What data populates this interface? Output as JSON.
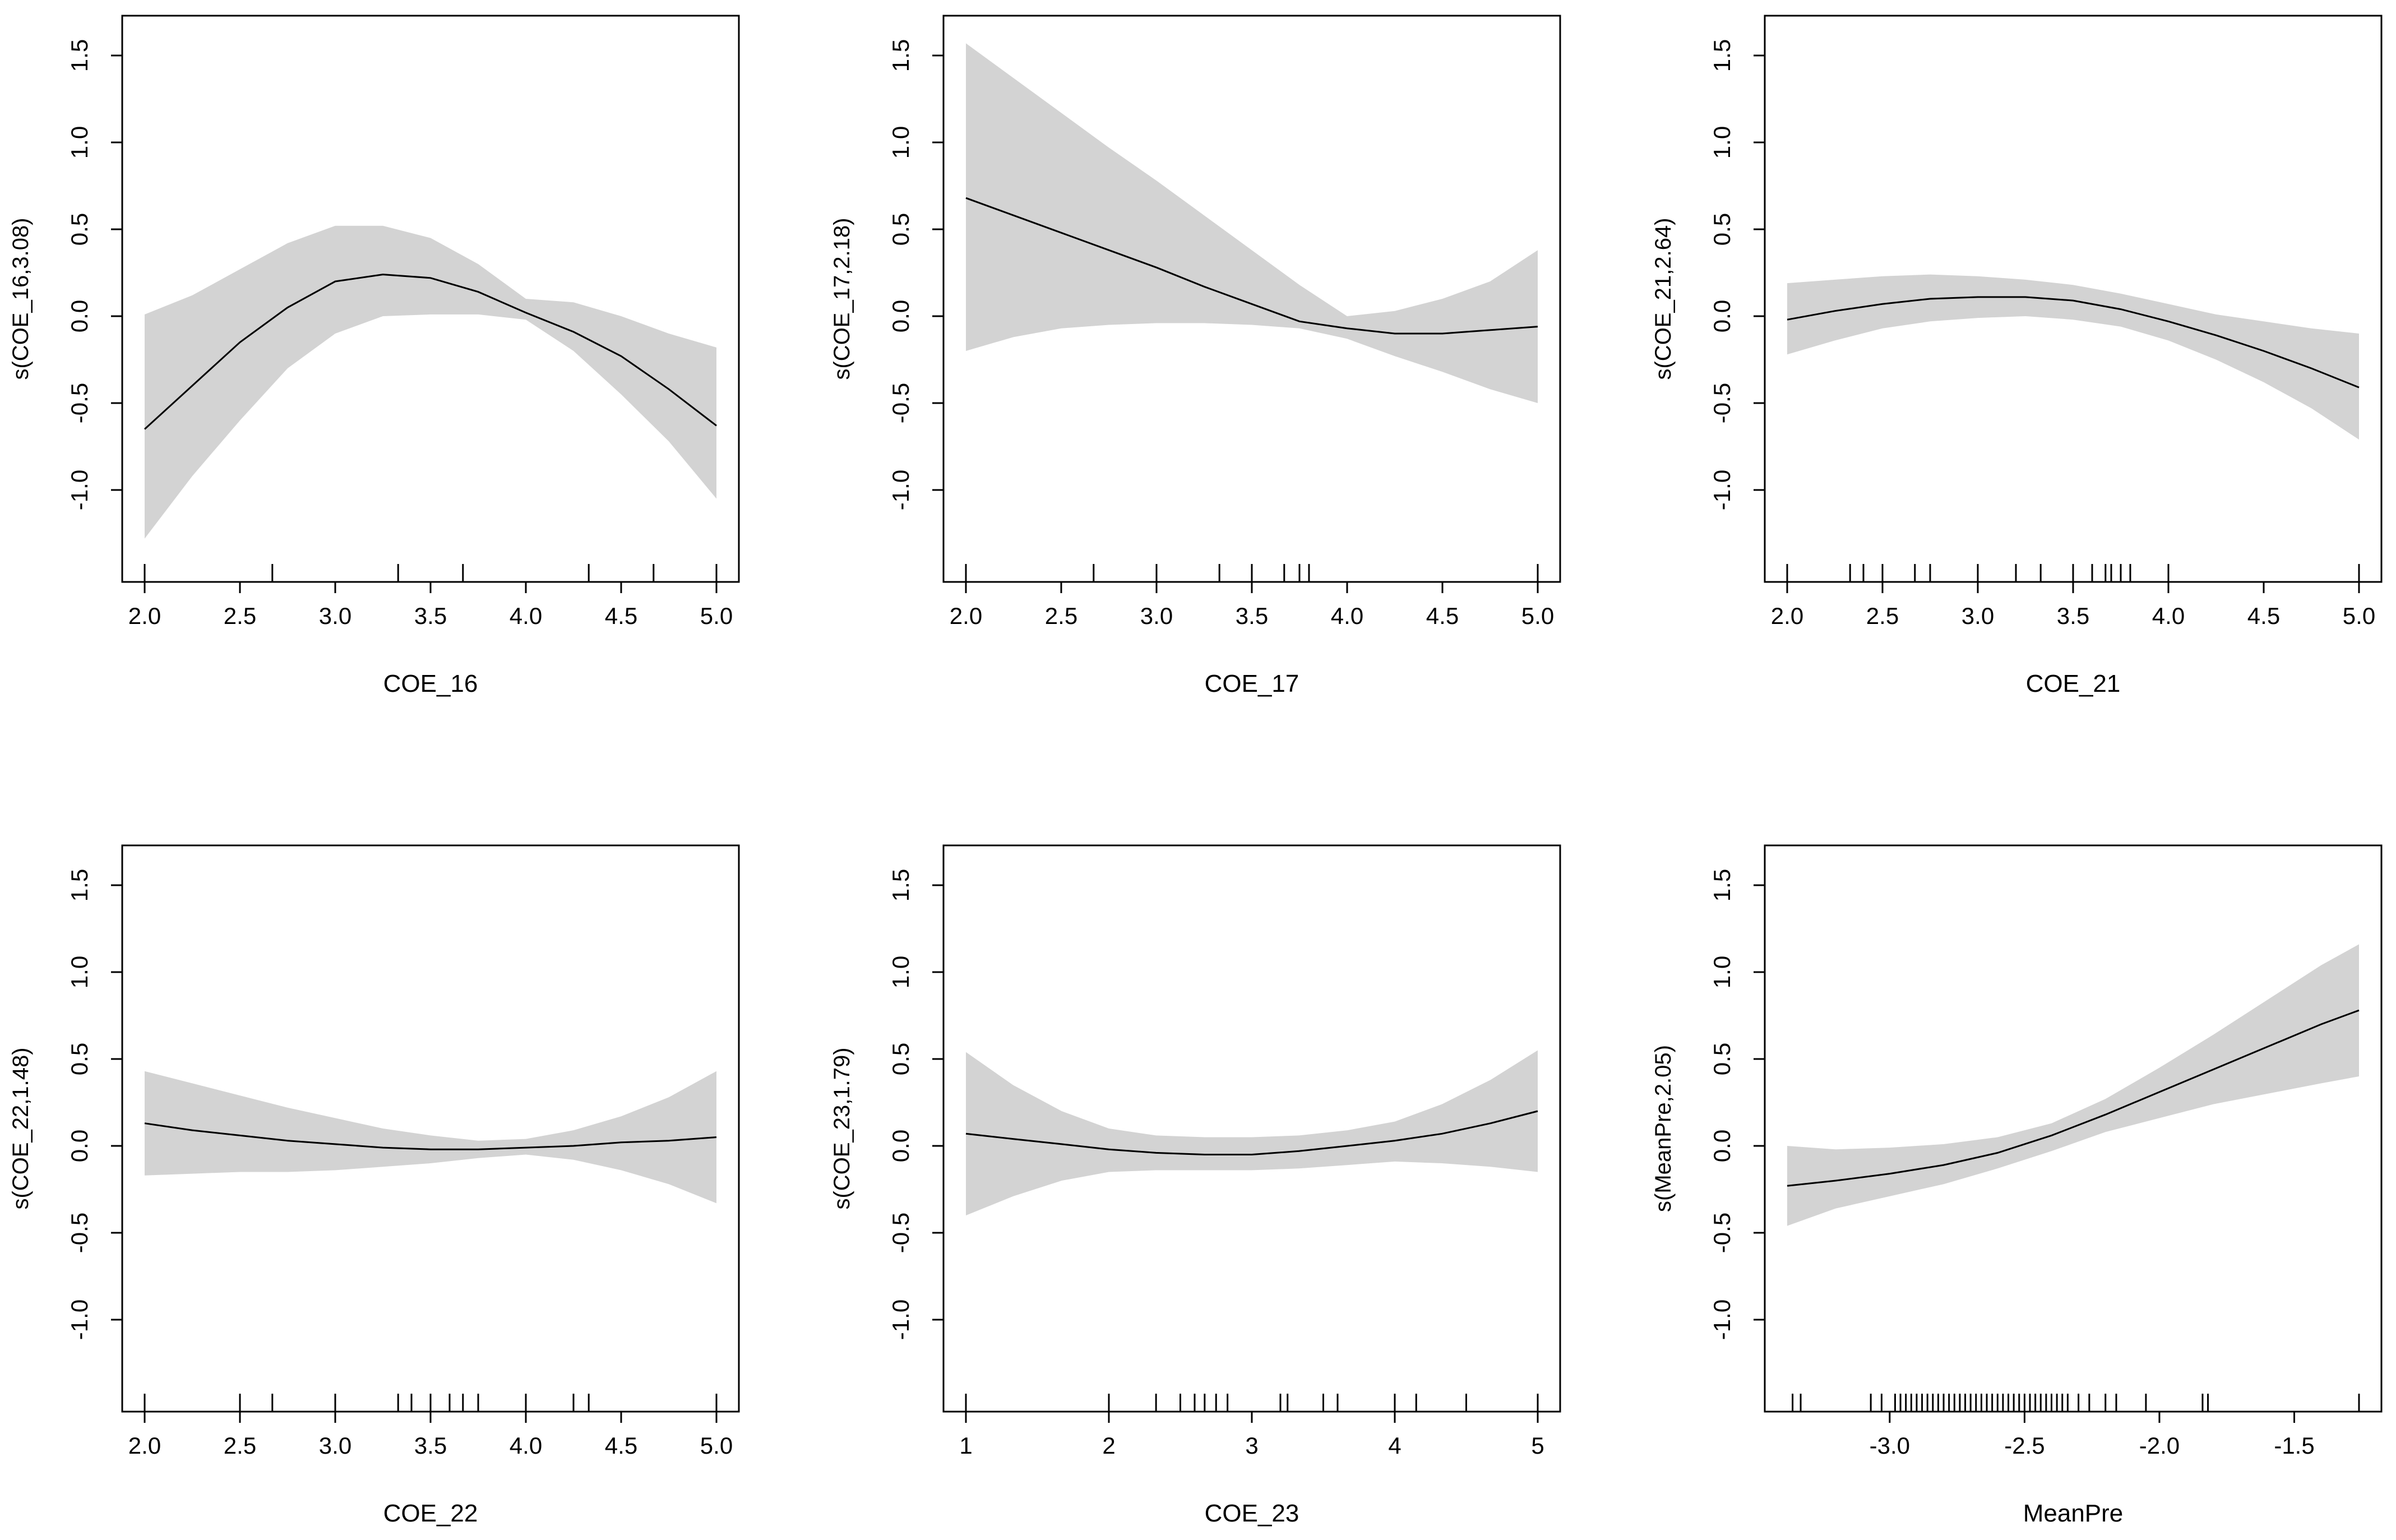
{
  "colors": {
    "band": "#d3d3d3",
    "line": "#000000",
    "axis": "#000000"
  },
  "chart_data": [
    {
      "type": "line",
      "title": "",
      "xlabel": "COE_16",
      "ylabel": "s(COE_16,3.08)",
      "xlim": [
        2.0,
        5.0
      ],
      "ylim": [
        -1.4,
        1.6
      ],
      "xticks": [
        2.0,
        2.5,
        3.0,
        3.5,
        4.0,
        4.5,
        5.0
      ],
      "xtick_labels": [
        "2.0",
        "2.5",
        "3.0",
        "3.5",
        "4.0",
        "4.5",
        "5.0"
      ],
      "yticks": [
        -1.0,
        -0.5,
        0.0,
        0.5,
        1.0,
        1.5
      ],
      "ytick_labels": [
        "-1.0",
        "-0.5",
        "0.0",
        "0.5",
        "1.0",
        "1.5"
      ],
      "x": [
        2.0,
        2.25,
        2.5,
        2.75,
        3.0,
        3.25,
        3.5,
        3.75,
        4.0,
        4.25,
        4.5,
        4.75,
        5.0
      ],
      "fit": [
        -0.65,
        -0.4,
        -0.15,
        0.05,
        0.2,
        0.24,
        0.22,
        0.14,
        0.02,
        -0.09,
        -0.23,
        -0.42,
        -0.63
      ],
      "upper": [
        0.01,
        0.12,
        0.27,
        0.42,
        0.52,
        0.52,
        0.45,
        0.3,
        0.1,
        0.08,
        0.0,
        -0.1,
        -0.18
      ],
      "lower": [
        -1.28,
        -0.92,
        -0.6,
        -0.3,
        -0.1,
        0.0,
        0.01,
        0.01,
        -0.02,
        -0.2,
        -0.45,
        -0.72,
        -1.05
      ],
      "rug": [
        2.0,
        2.67,
        3.33,
        3.67,
        4.33,
        4.67,
        5.0
      ]
    },
    {
      "type": "line",
      "title": "",
      "xlabel": "COE_17",
      "ylabel": "s(COE_17,2.18)",
      "xlim": [
        2.0,
        5.0
      ],
      "ylim": [
        -1.4,
        1.6
      ],
      "xticks": [
        2.0,
        2.5,
        3.0,
        3.5,
        4.0,
        4.5,
        5.0
      ],
      "xtick_labels": [
        "2.0",
        "2.5",
        "3.0",
        "3.5",
        "4.0",
        "4.5",
        "5.0"
      ],
      "yticks": [
        -1.0,
        -0.5,
        0.0,
        0.5,
        1.0,
        1.5
      ],
      "ytick_labels": [
        "-1.0",
        "-0.5",
        "0.0",
        "0.5",
        "1.0",
        "1.5"
      ],
      "x": [
        2.0,
        2.25,
        2.5,
        2.75,
        3.0,
        3.25,
        3.5,
        3.75,
        4.0,
        4.25,
        4.5,
        4.75,
        5.0
      ],
      "fit": [
        0.68,
        0.58,
        0.48,
        0.38,
        0.28,
        0.17,
        0.07,
        -0.03,
        -0.07,
        -0.1,
        -0.1,
        -0.08,
        -0.06
      ],
      "upper": [
        1.57,
        1.37,
        1.17,
        0.97,
        0.78,
        0.58,
        0.38,
        0.18,
        0.0,
        0.03,
        0.1,
        0.2,
        0.38
      ],
      "lower": [
        -0.2,
        -0.12,
        -0.07,
        -0.05,
        -0.04,
        -0.04,
        -0.05,
        -0.07,
        -0.13,
        -0.23,
        -0.32,
        -0.42,
        -0.5
      ],
      "rug": [
        2.0,
        2.67,
        3.0,
        3.33,
        3.5,
        3.67,
        3.75,
        3.8,
        5.0
      ]
    },
    {
      "type": "line",
      "title": "",
      "xlabel": "COE_21",
      "ylabel": "s(COE_21,2.64)",
      "xlim": [
        2.0,
        5.0
      ],
      "ylim": [
        -1.4,
        1.6
      ],
      "xticks": [
        2.0,
        2.5,
        3.0,
        3.5,
        4.0,
        4.5,
        5.0
      ],
      "xtick_labels": [
        "2.0",
        "2.5",
        "3.0",
        "3.5",
        "4.0",
        "4.5",
        "5.0"
      ],
      "yticks": [
        -1.0,
        -0.5,
        0.0,
        0.5,
        1.0,
        1.5
      ],
      "ytick_labels": [
        "-1.0",
        "-0.5",
        "0.0",
        "0.5",
        "1.0",
        "1.5"
      ],
      "x": [
        2.0,
        2.25,
        2.5,
        2.75,
        3.0,
        3.25,
        3.5,
        3.75,
        4.0,
        4.25,
        4.5,
        4.75,
        5.0
      ],
      "fit": [
        -0.02,
        0.03,
        0.07,
        0.1,
        0.11,
        0.11,
        0.09,
        0.04,
        -0.03,
        -0.11,
        -0.2,
        -0.3,
        -0.41
      ],
      "upper": [
        0.19,
        0.21,
        0.23,
        0.24,
        0.23,
        0.21,
        0.18,
        0.13,
        0.07,
        0.01,
        -0.03,
        -0.07,
        -0.1
      ],
      "lower": [
        -0.22,
        -0.14,
        -0.07,
        -0.03,
        -0.01,
        0.0,
        -0.02,
        -0.06,
        -0.14,
        -0.25,
        -0.38,
        -0.53,
        -0.71
      ],
      "rug": [
        2.0,
        2.33,
        2.4,
        2.5,
        2.67,
        2.75,
        3.0,
        3.2,
        3.33,
        3.5,
        3.6,
        3.67,
        3.7,
        3.75,
        3.8,
        4.0,
        5.0
      ]
    },
    {
      "type": "line",
      "title": "",
      "xlabel": "COE_22",
      "ylabel": "s(COE_22,1.48)",
      "xlim": [
        2.0,
        5.0
      ],
      "ylim": [
        -1.4,
        1.6
      ],
      "xticks": [
        2.0,
        2.5,
        3.0,
        3.5,
        4.0,
        4.5,
        5.0
      ],
      "xtick_labels": [
        "2.0",
        "2.5",
        "3.0",
        "3.5",
        "4.0",
        "4.5",
        "5.0"
      ],
      "yticks": [
        -1.0,
        -0.5,
        0.0,
        0.5,
        1.0,
        1.5
      ],
      "ytick_labels": [
        "-1.0",
        "-0.5",
        "0.0",
        "0.5",
        "1.0",
        "1.5"
      ],
      "x": [
        2.0,
        2.25,
        2.5,
        2.75,
        3.0,
        3.25,
        3.5,
        3.75,
        4.0,
        4.25,
        4.5,
        4.75,
        5.0
      ],
      "fit": [
        0.13,
        0.09,
        0.06,
        0.03,
        0.01,
        -0.01,
        -0.02,
        -0.02,
        -0.01,
        0.0,
        0.02,
        0.03,
        0.05
      ],
      "upper": [
        0.43,
        0.36,
        0.29,
        0.22,
        0.16,
        0.1,
        0.06,
        0.03,
        0.04,
        0.09,
        0.17,
        0.28,
        0.43
      ],
      "lower": [
        -0.17,
        -0.16,
        -0.15,
        -0.15,
        -0.14,
        -0.12,
        -0.1,
        -0.07,
        -0.05,
        -0.08,
        -0.14,
        -0.22,
        -0.33
      ],
      "rug": [
        2.0,
        2.5,
        2.67,
        3.0,
        3.33,
        3.4,
        3.5,
        3.6,
        3.67,
        3.75,
        4.0,
        4.25,
        4.33,
        5.0
      ]
    },
    {
      "type": "line",
      "title": "",
      "xlabel": "COE_23",
      "ylabel": "s(COE_23,1.79)",
      "xlim": [
        1.0,
        5.0
      ],
      "ylim": [
        -1.4,
        1.6
      ],
      "xticks": [
        1,
        2,
        3,
        4,
        5
      ],
      "xtick_labels": [
        "1",
        "2",
        "3",
        "4",
        "5"
      ],
      "yticks": [
        -1.0,
        -0.5,
        0.0,
        0.5,
        1.0,
        1.5
      ],
      "ytick_labels": [
        "-1.0",
        "-0.5",
        "0.0",
        "0.5",
        "1.0",
        "1.5"
      ],
      "x": [
        1.0,
        1.33,
        1.67,
        2.0,
        2.33,
        2.67,
        3.0,
        3.33,
        3.67,
        4.0,
        4.33,
        4.67,
        5.0
      ],
      "fit": [
        0.07,
        0.04,
        0.01,
        -0.02,
        -0.04,
        -0.05,
        -0.05,
        -0.03,
        0.0,
        0.03,
        0.07,
        0.13,
        0.2
      ],
      "upper": [
        0.54,
        0.35,
        0.2,
        0.1,
        0.06,
        0.05,
        0.05,
        0.06,
        0.09,
        0.14,
        0.24,
        0.38,
        0.55
      ],
      "lower": [
        -0.4,
        -0.29,
        -0.2,
        -0.15,
        -0.14,
        -0.14,
        -0.14,
        -0.13,
        -0.11,
        -0.09,
        -0.1,
        -0.12,
        -0.15
      ],
      "rug": [
        1.0,
        2.0,
        2.33,
        2.5,
        2.6,
        2.67,
        2.75,
        2.83,
        3.2,
        3.25,
        3.5,
        3.6,
        4.0,
        4.15,
        4.5,
        5.0
      ]
    },
    {
      "type": "line",
      "title": "",
      "xlabel": "MeanPre",
      "ylabel": "s(MeanPre,2.05)",
      "xlim": [
        -3.38,
        -1.26
      ],
      "ylim": [
        -1.4,
        1.6
      ],
      "xticks": [
        -3.0,
        -2.5,
        -2.0,
        -1.5
      ],
      "xtick_labels": [
        "-3.0",
        "-2.5",
        "-2.0",
        "-1.5"
      ],
      "yticks": [
        -1.0,
        -0.5,
        0.0,
        0.5,
        1.0,
        1.5
      ],
      "ytick_labels": [
        "-1.0",
        "-0.5",
        "0.0",
        "0.5",
        "1.0",
        "1.5"
      ],
      "x": [
        -3.38,
        -3.2,
        -3.0,
        -2.8,
        -2.6,
        -2.4,
        -2.2,
        -2.0,
        -1.8,
        -1.6,
        -1.4,
        -1.26
      ],
      "fit": [
        -0.23,
        -0.2,
        -0.16,
        -0.11,
        -0.04,
        0.06,
        0.18,
        0.31,
        0.44,
        0.57,
        0.7,
        0.78
      ],
      "upper": [
        0.0,
        -0.02,
        -0.01,
        0.01,
        0.05,
        0.13,
        0.27,
        0.45,
        0.64,
        0.84,
        1.04,
        1.16
      ],
      "lower": [
        -0.46,
        -0.36,
        -0.29,
        -0.22,
        -0.13,
        -0.03,
        0.08,
        0.16,
        0.24,
        0.3,
        0.36,
        0.4
      ],
      "rug": [
        -3.36,
        -3.33,
        -3.07,
        -3.03,
        -2.98,
        -2.96,
        -2.94,
        -2.92,
        -2.9,
        -2.88,
        -2.86,
        -2.84,
        -2.82,
        -2.8,
        -2.78,
        -2.76,
        -2.74,
        -2.72,
        -2.7,
        -2.68,
        -2.66,
        -2.64,
        -2.62,
        -2.6,
        -2.58,
        -2.56,
        -2.54,
        -2.52,
        -2.5,
        -2.48,
        -2.46,
        -2.44,
        -2.42,
        -2.4,
        -2.38,
        -2.36,
        -2.34,
        -2.3,
        -2.26,
        -2.2,
        -2.16,
        -2.05,
        -1.84,
        -1.82,
        -1.26
      ]
    }
  ]
}
